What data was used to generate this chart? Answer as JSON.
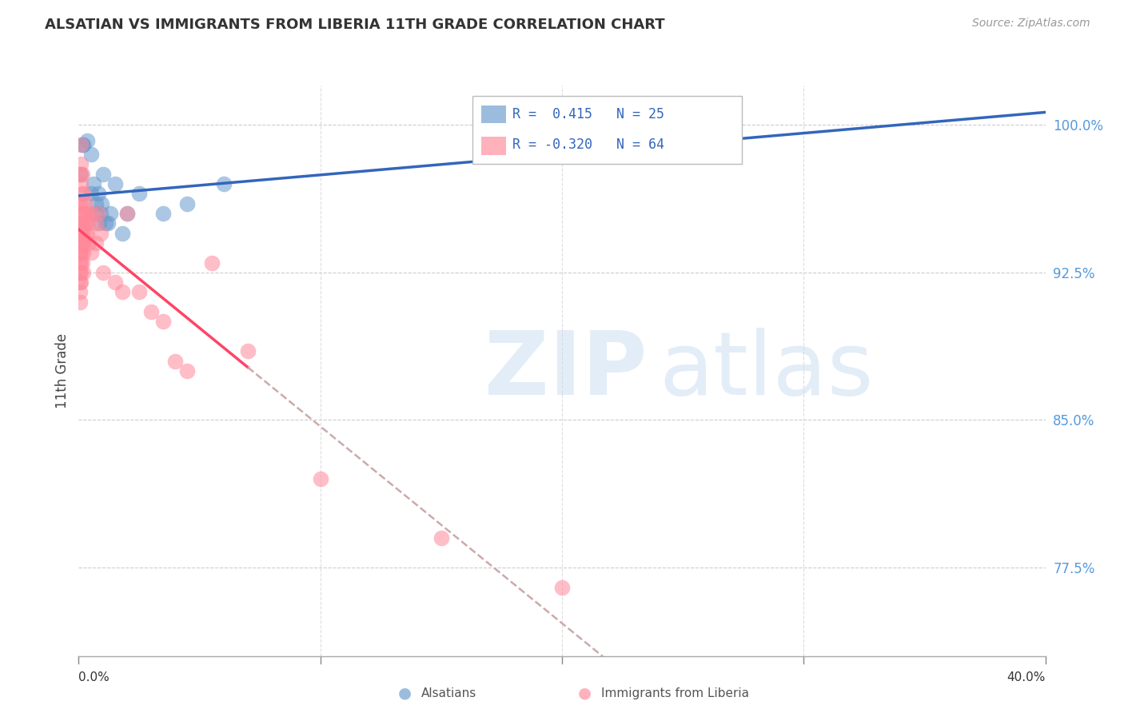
{
  "title": "ALSATIAN VS IMMIGRANTS FROM LIBERIA 11TH GRADE CORRELATION CHART",
  "source": "Source: ZipAtlas.com",
  "ylabel": "11th Grade",
  "y_ticks": [
    77.5,
    85.0,
    92.5,
    100.0
  ],
  "y_tick_labels": [
    "77.5%",
    "85.0%",
    "92.5%",
    "100.0%"
  ],
  "x_min": 0.0,
  "x_max": 40.0,
  "y_min": 73.0,
  "y_max": 102.0,
  "legend_label_blue": "Alsatians",
  "legend_label_pink": "Immigrants from Liberia",
  "R_blue": 0.415,
  "N_blue": 25,
  "R_pink": -0.32,
  "N_pink": 64,
  "blue_color": "#6699CC",
  "pink_color": "#FF8899",
  "trend_blue_color": "#3366BB",
  "trend_pink_color": "#FF4466",
  "trend_pink_dash_color": "#CCAAAA",
  "alsatian_points": [
    [
      0.1,
      97.5
    ],
    [
      0.15,
      99.0
    ],
    [
      0.2,
      99.0
    ],
    [
      0.35,
      99.2
    ],
    [
      0.5,
      98.5
    ],
    [
      0.5,
      96.5
    ],
    [
      0.6,
      97.0
    ],
    [
      0.7,
      96.0
    ],
    [
      0.7,
      95.5
    ],
    [
      0.8,
      96.5
    ],
    [
      0.85,
      95.0
    ],
    [
      0.9,
      95.5
    ],
    [
      0.95,
      96.0
    ],
    [
      1.0,
      97.5
    ],
    [
      1.1,
      95.0
    ],
    [
      1.2,
      95.0
    ],
    [
      1.3,
      95.5
    ],
    [
      1.5,
      97.0
    ],
    [
      1.8,
      94.5
    ],
    [
      2.0,
      95.5
    ],
    [
      2.5,
      96.5
    ],
    [
      3.5,
      95.5
    ],
    [
      4.5,
      96.0
    ],
    [
      6.0,
      97.0
    ],
    [
      21.0,
      99.5
    ]
  ],
  "liberia_points": [
    [
      0.05,
      97.5
    ],
    [
      0.05,
      96.0
    ],
    [
      0.05,
      95.0
    ],
    [
      0.05,
      94.5
    ],
    [
      0.05,
      94.0
    ],
    [
      0.05,
      93.5
    ],
    [
      0.05,
      93.0
    ],
    [
      0.05,
      92.5
    ],
    [
      0.05,
      92.0
    ],
    [
      0.05,
      91.5
    ],
    [
      0.05,
      91.0
    ],
    [
      0.05,
      93.5
    ],
    [
      0.1,
      99.0
    ],
    [
      0.1,
      98.0
    ],
    [
      0.1,
      97.0
    ],
    [
      0.1,
      96.0
    ],
    [
      0.1,
      95.5
    ],
    [
      0.1,
      95.0
    ],
    [
      0.1,
      94.5
    ],
    [
      0.1,
      94.0
    ],
    [
      0.1,
      93.5
    ],
    [
      0.1,
      93.0
    ],
    [
      0.1,
      92.5
    ],
    [
      0.1,
      92.0
    ],
    [
      0.15,
      97.5
    ],
    [
      0.15,
      96.5
    ],
    [
      0.15,
      95.0
    ],
    [
      0.15,
      94.5
    ],
    [
      0.15,
      94.0
    ],
    [
      0.15,
      93.0
    ],
    [
      0.2,
      96.5
    ],
    [
      0.2,
      95.5
    ],
    [
      0.2,
      95.0
    ],
    [
      0.2,
      94.0
    ],
    [
      0.2,
      93.5
    ],
    [
      0.2,
      92.5
    ],
    [
      0.25,
      95.5
    ],
    [
      0.3,
      96.0
    ],
    [
      0.3,
      95.0
    ],
    [
      0.3,
      94.5
    ],
    [
      0.35,
      95.5
    ],
    [
      0.35,
      94.5
    ],
    [
      0.4,
      95.0
    ],
    [
      0.4,
      94.0
    ],
    [
      0.5,
      95.5
    ],
    [
      0.5,
      93.5
    ],
    [
      0.7,
      95.0
    ],
    [
      0.7,
      94.0
    ],
    [
      0.8,
      95.5
    ],
    [
      0.9,
      94.5
    ],
    [
      1.0,
      92.5
    ],
    [
      1.5,
      92.0
    ],
    [
      1.8,
      91.5
    ],
    [
      2.0,
      95.5
    ],
    [
      2.5,
      91.5
    ],
    [
      3.0,
      90.5
    ],
    [
      3.5,
      90.0
    ],
    [
      4.0,
      88.0
    ],
    [
      4.5,
      87.5
    ],
    [
      5.5,
      93.0
    ],
    [
      7.0,
      88.5
    ],
    [
      10.0,
      82.0
    ],
    [
      15.0,
      79.0
    ],
    [
      20.0,
      76.5
    ]
  ]
}
